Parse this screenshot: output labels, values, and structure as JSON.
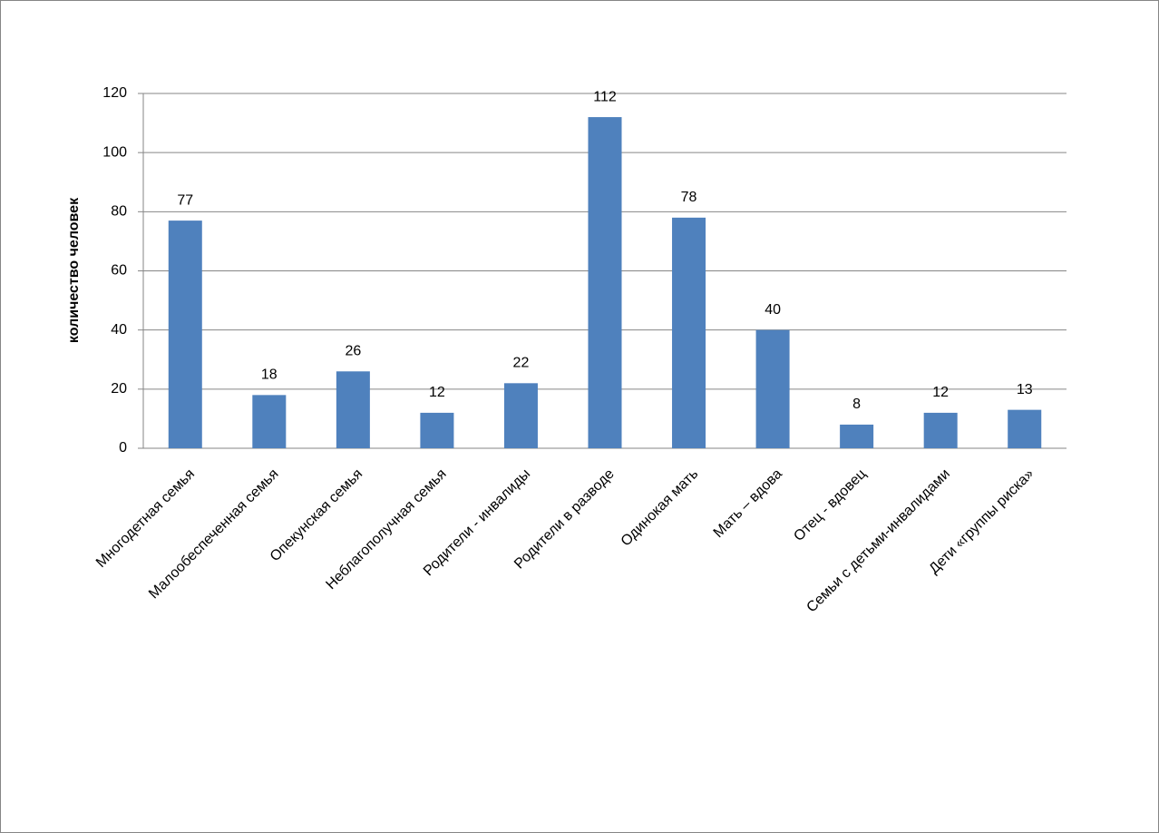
{
  "chart_data": {
    "type": "bar",
    "y_label": "количество человек",
    "categories": [
      "Многодетная семья",
      "Малообеспеченная семья",
      "Опекунская семья",
      "Неблагополучная семья",
      "Родители - инвалиды",
      "Родители в разводе",
      "Одинокая мать",
      "Мать – вдова",
      "Отец - вдовец",
      "Семьи с детьми-инвалидами",
      "Дети «группы риска»"
    ],
    "values": [
      77,
      18,
      26,
      12,
      22,
      112,
      78,
      40,
      8,
      12,
      13
    ],
    "color": "#4f81bd",
    "ylim": [
      0,
      120
    ],
    "yticks": [
      0,
      20,
      40,
      60,
      80,
      100,
      120
    ],
    "grid": true
  }
}
